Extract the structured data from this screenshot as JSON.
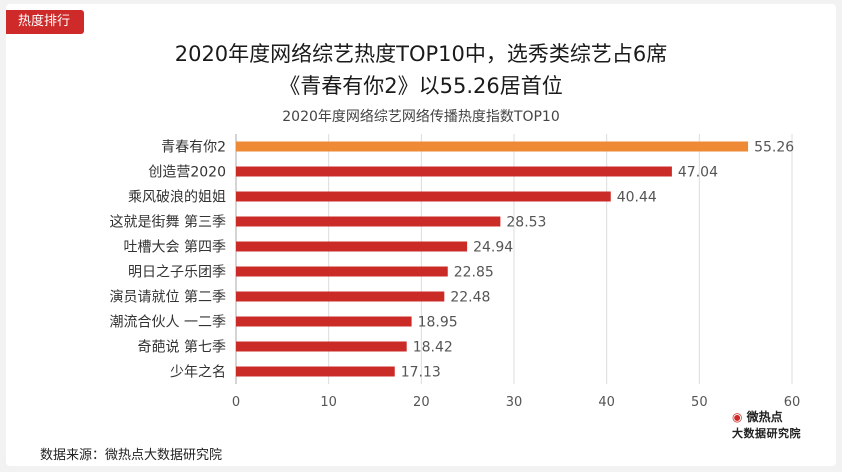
{
  "header": {
    "tag": "热度排行",
    "title_line1": "2020年度网络综艺热度TOP10中，选秀类综艺占6席",
    "title_line2": "《青春有你2》以55.26居首位"
  },
  "chart_data": {
    "type": "bar",
    "orientation": "horizontal",
    "title": "2020年度网络综艺网络传播热度指数TOP10",
    "categories": [
      "青春有你2",
      "创造营2020",
      "乘风破浪的姐姐",
      "这就是街舞 第三季",
      "吐槽大会 第四季",
      "明日之子乐团季",
      "演员请就位 第二季",
      "潮流合伙人 一二季",
      "奇葩说 第七季",
      "少年之名"
    ],
    "values": [
      55.26,
      47.04,
      40.44,
      28.53,
      24.94,
      22.85,
      22.48,
      18.95,
      18.42,
      17.13
    ],
    "value_labels": [
      "55.26",
      "47.04",
      "40.44",
      "28.53",
      "24.94",
      "22.85",
      "22.48",
      "18.95",
      "18.42",
      "17.13"
    ],
    "xlim": [
      0,
      60
    ],
    "xticks": [
      "0",
      "10",
      "20",
      "30",
      "40",
      "50",
      "60"
    ],
    "xlabel": "",
    "ylabel": "",
    "grid": true,
    "colors": {
      "highlight": "#ee8a36",
      "default": "#cb2b27",
      "grid": "#dcdcdc",
      "axis": "#aaaaaa"
    }
  },
  "footer": {
    "source": "数据来源：微热点大数据研究院",
    "logo_top": "微热点",
    "logo_bottom": "大数据研究院"
  }
}
